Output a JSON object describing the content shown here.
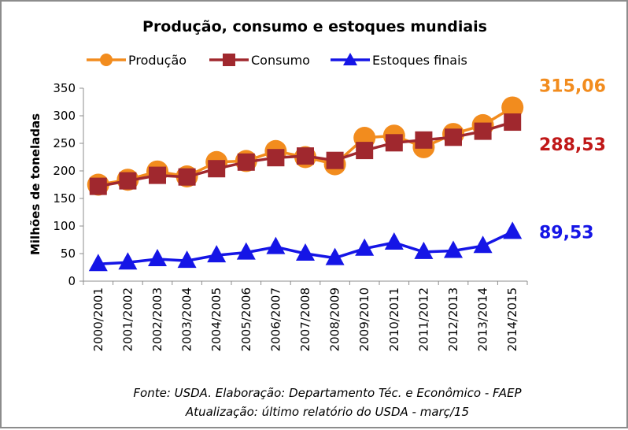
{
  "chart_data": {
    "type": "line",
    "title": "Produção, consumo e estoques mundiais",
    "ylabel": "Milhões de toneladas",
    "ylim": [
      0,
      350
    ],
    "yticks": [
      0,
      50,
      100,
      150,
      200,
      250,
      300,
      350
    ],
    "categories": [
      "2000/2001",
      "2001/2002",
      "2002/2003",
      "2003/2004",
      "2004/2005",
      "2005/2006",
      "2006/2007",
      "2007/2008",
      "2008/2009",
      "2009/2010",
      "2010/2011",
      "2011/2012",
      "2012/2013",
      "2013/2014",
      "2014/2015"
    ],
    "legend_position": "top",
    "grid": false,
    "series": [
      {
        "name": "Produção",
        "color": "#f28c1e",
        "marker": "circle",
        "values": [
          175,
          184,
          199,
          190,
          216,
          218,
          236,
          225,
          212,
          260,
          264,
          243,
          267,
          283,
          315.06
        ],
        "end_label": "315,06"
      },
      {
        "name": "Consumo",
        "color": "#a0282e",
        "marker": "square",
        "values": [
          172,
          182,
          192,
          189,
          204,
          216,
          224,
          227,
          219,
          237,
          251,
          256,
          261,
          272,
          288.53
        ],
        "end_label": "288,53"
      },
      {
        "name": "Estoques finais",
        "color": "#1515e6",
        "marker": "triangle",
        "values": [
          31,
          34,
          40,
          37,
          47,
          52,
          62,
          50,
          42,
          59,
          70,
          53,
          55,
          64,
          89.53
        ],
        "end_label": "89,53"
      }
    ],
    "end_label_colors": [
      "#f28c1e",
      "#c01818",
      "#1515e6"
    ]
  },
  "footer": {
    "line1": "Fonte: USDA. Elaboração: Departamento Téc. e Econômico - FAEP",
    "line2": "Atualização: último relatório do USDA - març/15"
  }
}
